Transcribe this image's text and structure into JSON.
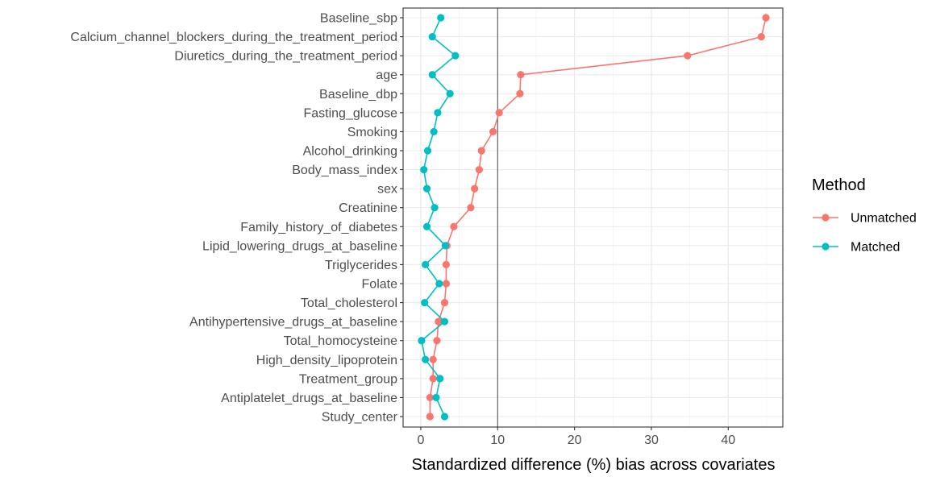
{
  "chart_data": {
    "type": "line",
    "xlabel": "Standardized difference (%) bias across covariates",
    "xlim": [
      -2.3,
      47.1
    ],
    "xticks": [
      0,
      10,
      20,
      30,
      40
    ],
    "reference_line": 10,
    "grid": true,
    "legend_position": "right",
    "legend_title": "Method",
    "categories": [
      "Baseline_sbp",
      "Calcium_channel_blockers_during_the_treatment_period",
      "Diuretics_during_the_treatment_period",
      "age",
      "Baseline_dbp",
      "Fasting_glucose",
      "Smoking",
      "Alcohol_drinking",
      "Body_mass_index",
      "sex",
      "Creatinine",
      "Family_history_of_diabetes",
      "Lipid_lowering_drugs_at_baseline",
      "Triglycerides",
      "Folate",
      "Total_cholesterol",
      "Antihypertensive_drugs_at_baseline",
      "Total_homocysteine",
      "High_density_lipoprotein",
      "Treatment_group",
      "Antiplatelet_drugs_at_baseline",
      "Study_center"
    ],
    "series": [
      {
        "name": "Unmatched",
        "color": "#F8766D",
        "values": [
          44.9,
          44.3,
          34.7,
          13.0,
          12.9,
          10.2,
          9.4,
          7.9,
          7.6,
          7.0,
          6.5,
          4.3,
          3.4,
          3.3,
          3.3,
          3.1,
          2.3,
          2.1,
          1.6,
          1.6,
          1.2,
          1.2
        ]
      },
      {
        "name": "Matched",
        "color": "#00BFC4",
        "values": [
          2.6,
          1.5,
          4.5,
          1.5,
          3.8,
          2.2,
          1.7,
          0.9,
          0.4,
          0.8,
          1.8,
          0.8,
          3.2,
          0.6,
          2.4,
          0.5,
          3.1,
          0.1,
          0.6,
          2.5,
          2.0,
          3.1
        ]
      }
    ]
  }
}
